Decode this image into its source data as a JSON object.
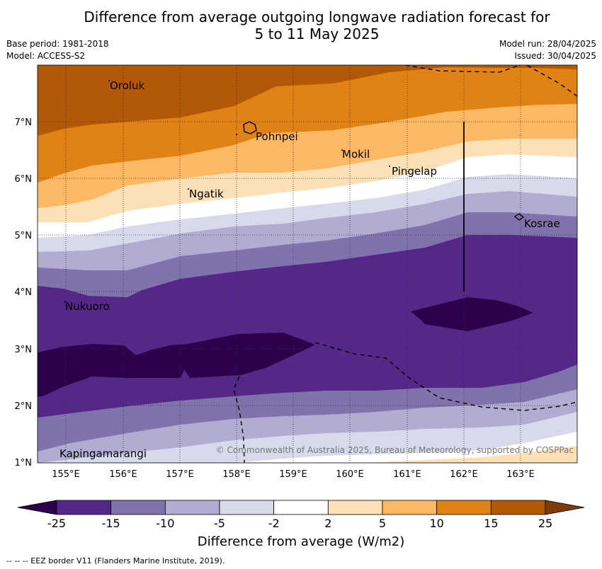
{
  "title": {
    "line1": "Difference from average outgoing longwave radiation forecast for",
    "line2": "5 to 11 May 2025"
  },
  "meta": {
    "base_period": "Base period: 1981-2018",
    "model": "Model: ACCESS-S2",
    "model_run": "Model run: 28/04/2025",
    "issued": "Issued: 30/04/2025"
  },
  "map": {
    "lat_labels": [
      "7°N",
      "6°N",
      "5°N",
      "4°N",
      "3°N",
      "2°N",
      "1°N"
    ],
    "lon_labels": [
      "155°E",
      "156°E",
      "157°E",
      "158°E",
      "159°E",
      "160°E",
      "161°E",
      "162°E",
      "163°E"
    ],
    "places": [
      {
        "name": "Oroluk"
      },
      {
        "name": "Pohnpei"
      },
      {
        "name": "Mokil"
      },
      {
        "name": "Pingelap"
      },
      {
        "name": "Ngatik"
      },
      {
        "name": "Kosrae"
      },
      {
        "name": "Nukuoro"
      },
      {
        "name": "Kapingamarangi"
      }
    ],
    "copyright": "© Commonwealth of Australia 2025, Bureau of Meteorology, supported by COSPPac"
  },
  "colorbar": {
    "ticks": [
      "-25",
      "-15",
      "-10",
      "-5",
      "-2",
      "2",
      "5",
      "10",
      "15",
      "25"
    ],
    "colors": [
      "#2d004b",
      "#542788",
      "#8073ac",
      "#b2abd2",
      "#d8daeb",
      "#ffffff",
      "#fee0b6",
      "#fdb863",
      "#e08214",
      "#b35806",
      "#7f3b08"
    ],
    "label": "Difference from average (W/m2)"
  },
  "footer": "--  --  -- EEZ border V11 (Flanders Marine Institute, 2019)."
}
